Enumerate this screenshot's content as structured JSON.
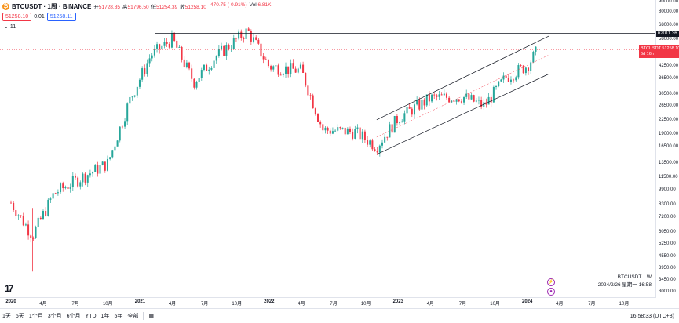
{
  "header": {
    "symbol": "BTCUSDT · 1周 · BINANCE",
    "open_label": "开",
    "open": "51728.85",
    "high_label": "高",
    "high": "51796.50",
    "low_label": "低",
    "low": "51254.39",
    "close_label": "收",
    "close": "51258.10",
    "change": "-470.75 (-0.91%)",
    "vol_label": "Vol",
    "vol": "6.81K",
    "sell_price": "51258.10",
    "spread": "0.01",
    "buy_price": "51258.11",
    "indicators_count": "11"
  },
  "yaxis": {
    "labels": [
      "90000.00",
      "80000.00",
      "68000.00",
      "58000.00",
      "50000.00",
      "42500.00",
      "36500.00",
      "30500.00",
      "26500.00",
      "22500.00",
      "19000.00",
      "16500.00",
      "13500.00",
      "11500.00",
      "9900.00",
      "8300.00",
      "7200.00",
      "6050.00",
      "5250.00",
      "4550.00",
      "3950.00",
      "3450.00",
      "3000.00"
    ],
    "resistance_tag": "62011.36",
    "current_tag_symbol": "BTCUSDT",
    "current_tag_price": "51258.10",
    "current_tag_time": "6d 16h"
  },
  "xaxis": {
    "labels": [
      {
        "text": "2020",
        "bold": true
      },
      {
        "text": "4月",
        "bold": false
      },
      {
        "text": "7月",
        "bold": false
      },
      {
        "text": "10月",
        "bold": false
      },
      {
        "text": "2021",
        "bold": true
      },
      {
        "text": "4月",
        "bold": false
      },
      {
        "text": "7月",
        "bold": false
      },
      {
        "text": "10月",
        "bold": false
      },
      {
        "text": "2022",
        "bold": true
      },
      {
        "text": "4月",
        "bold": false
      },
      {
        "text": "7月",
        "bold": false
      },
      {
        "text": "10月",
        "bold": false
      },
      {
        "text": "2023",
        "bold": true
      },
      {
        "text": "4月",
        "bold": false
      },
      {
        "text": "7月",
        "bold": false
      },
      {
        "text": "10月",
        "bold": false
      },
      {
        "text": "2024",
        "bold": true
      },
      {
        "text": "4月",
        "bold": false
      },
      {
        "text": "7月",
        "bold": false
      },
      {
        "text": "10月",
        "bold": false
      }
    ]
  },
  "watermark": {
    "line1": "BTCUSDT｜W",
    "line2": "2024/2/26 星期一 16:58"
  },
  "logo": "17",
  "bottom": {
    "timeframes": [
      "1天",
      "5天",
      "1个月",
      "3个月",
      "6个月",
      "YTD",
      "1年",
      "5年",
      "全部"
    ],
    "clock": "16:58:33 (UTC+8)"
  },
  "colors": {
    "up": "#26a69a",
    "down": "#f23645",
    "accent": "#2962ff",
    "event": "#9c27b0"
  },
  "icons": {
    "range_picker": "calendar-icon",
    "collapse": "chevron-down-icon",
    "coin": "bitcoin-icon",
    "event": "event-marker-icon"
  },
  "chart_data": {
    "type": "candlestick",
    "title": "BTCUSDT · 1周 · BINANCE",
    "ylabel": "",
    "y_scale": "log",
    "yticks": [
      90000,
      80000,
      68000,
      58000,
      50000,
      42500,
      36500,
      30500,
      26500,
      22500,
      19000,
      16500,
      13500,
      11500,
      9900,
      8300,
      7200,
      6050,
      5250,
      4550,
      3950,
      3450,
      3000
    ],
    "close_series": [
      {
        "date": "2020-01",
        "close": 8500
      },
      {
        "date": "2020-03",
        "close": 5800
      },
      {
        "date": "2020-05",
        "close": 9500
      },
      {
        "date": "2020-07",
        "close": 11000
      },
      {
        "date": "2020-10",
        "close": 13500
      },
      {
        "date": "2020-12",
        "close": 28000
      },
      {
        "date": "2021-02",
        "close": 48000
      },
      {
        "date": "2021-04",
        "close": 58000
      },
      {
        "date": "2021-06",
        "close": 35000
      },
      {
        "date": "2021-08",
        "close": 47000
      },
      {
        "date": "2021-11",
        "close": 64000
      },
      {
        "date": "2022-01",
        "close": 42000
      },
      {
        "date": "2022-04",
        "close": 40000
      },
      {
        "date": "2022-06",
        "close": 20000
      },
      {
        "date": "2022-09",
        "close": 19500
      },
      {
        "date": "2022-11",
        "close": 16500
      },
      {
        "date": "2023-01",
        "close": 23000
      },
      {
        "date": "2023-04",
        "close": 29000
      },
      {
        "date": "2023-07",
        "close": 29500
      },
      {
        "date": "2023-09",
        "close": 26500
      },
      {
        "date": "2023-11",
        "close": 37000
      },
      {
        "date": "2024-01",
        "close": 42500
      },
      {
        "date": "2024-02",
        "close": 51258.1
      }
    ],
    "resistance": 62011.36,
    "current_price": 51258.1,
    "channel": {
      "upper_start": {
        "date": "2022-11",
        "price": 22500
      },
      "upper_end": {
        "date": "2024-03",
        "price": 60000
      },
      "lower_start": {
        "date": "2022-11",
        "price": 15000
      },
      "lower_end": {
        "date": "2024-03",
        "price": 38500
      }
    }
  }
}
